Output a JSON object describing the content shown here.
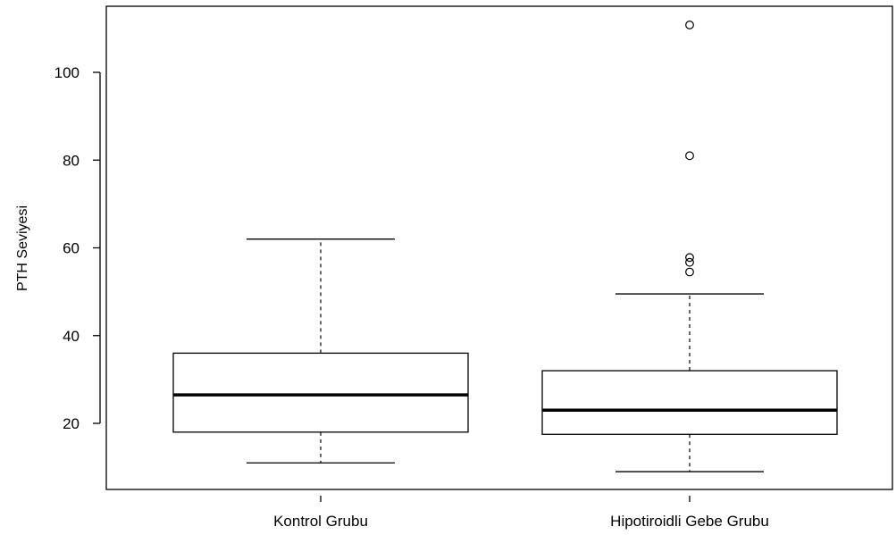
{
  "chart_data": {
    "type": "boxplot",
    "title": "",
    "xlabel": "",
    "ylabel": "PTH Seviyesi",
    "ylim": [
      5,
      114
    ],
    "yticks": [
      20,
      40,
      60,
      80,
      100
    ],
    "grid": false,
    "categories": [
      "Kontrol Grubu",
      "Hipotiroidli Gebe Grubu"
    ],
    "boxes": [
      {
        "name": "Kontrol Grubu",
        "whisker_low": 11,
        "q1": 18,
        "median": 26.5,
        "q3": 36,
        "whisker_high": 62,
        "outliers": []
      },
      {
        "name": "Hipotiroidli Gebe Grubu",
        "whisker_low": 9,
        "q1": 17.5,
        "median": 23,
        "q3": 32,
        "whisker_high": 49.5,
        "outliers": [
          54.5,
          56.7,
          57.8,
          81,
          110.8
        ]
      }
    ]
  }
}
